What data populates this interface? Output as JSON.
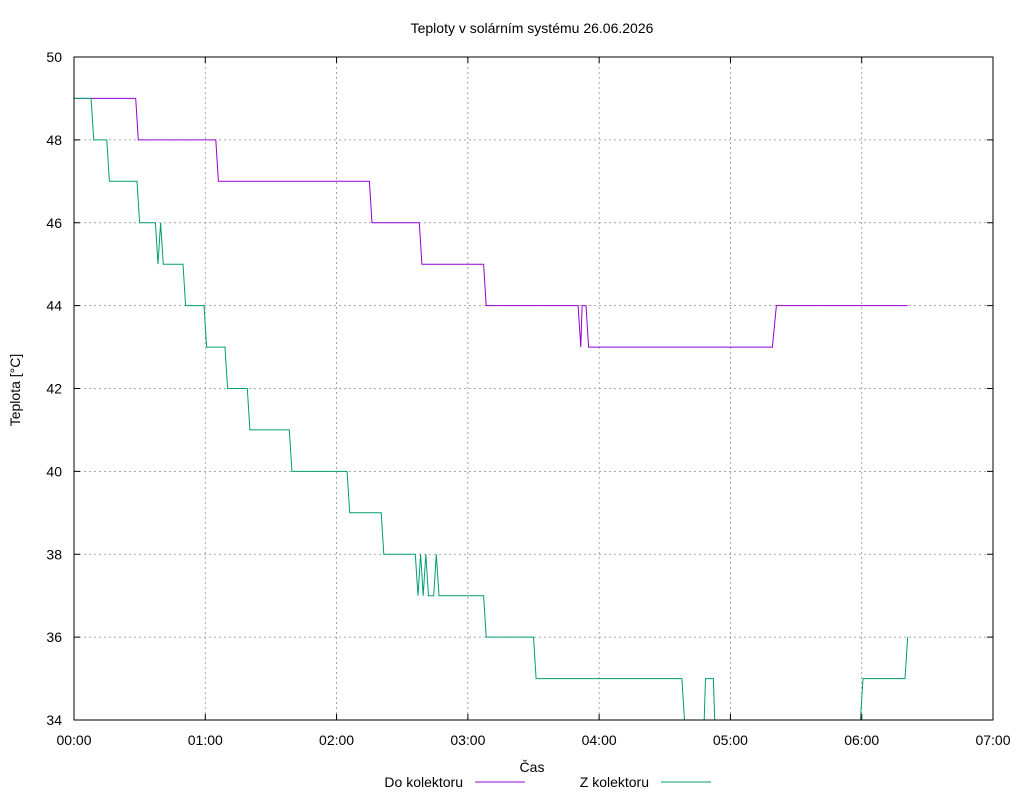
{
  "chart_data": {
    "type": "line",
    "title": "Teploty v solárním systému 26.06.2026",
    "xlabel": "Čas",
    "ylabel": "Teplota [°C]",
    "xlim": [
      0,
      7
    ],
    "ylim": [
      34,
      50
    ],
    "x_ticks": [
      {
        "v": 0,
        "label": "00:00"
      },
      {
        "v": 1,
        "label": "01:00"
      },
      {
        "v": 2,
        "label": "02:00"
      },
      {
        "v": 3,
        "label": "03:00"
      },
      {
        "v": 4,
        "label": "04:00"
      },
      {
        "v": 5,
        "label": "05:00"
      },
      {
        "v": 6,
        "label": "06:00"
      },
      {
        "v": 7,
        "label": "07:00"
      }
    ],
    "y_ticks": [
      {
        "v": 34,
        "label": "34"
      },
      {
        "v": 36,
        "label": "36"
      },
      {
        "v": 38,
        "label": "38"
      },
      {
        "v": 40,
        "label": "40"
      },
      {
        "v": 42,
        "label": "42"
      },
      {
        "v": 44,
        "label": "44"
      },
      {
        "v": 46,
        "label": "46"
      },
      {
        "v": 48,
        "label": "48"
      },
      {
        "v": 50,
        "label": "50"
      }
    ],
    "grid": true,
    "legend_position": "bottom",
    "series": [
      {
        "name": "Do kolektoru",
        "color": "#9400d3",
        "points": [
          [
            0.0,
            49
          ],
          [
            0.47,
            49
          ],
          [
            0.49,
            48
          ],
          [
            1.08,
            48
          ],
          [
            1.1,
            47
          ],
          [
            2.25,
            47
          ],
          [
            2.27,
            46
          ],
          [
            2.63,
            46
          ],
          [
            2.65,
            45
          ],
          [
            3.12,
            45
          ],
          [
            3.14,
            44
          ],
          [
            3.84,
            44
          ],
          [
            3.86,
            43
          ],
          [
            3.87,
            44
          ],
          [
            3.9,
            44
          ],
          [
            3.92,
            43
          ],
          [
            5.32,
            43
          ],
          [
            5.35,
            44
          ],
          [
            6.35,
            44
          ]
        ]
      },
      {
        "name": "Z kolektoru",
        "color": "#009e73",
        "points": [
          [
            0.0,
            49
          ],
          [
            0.13,
            49
          ],
          [
            0.15,
            48
          ],
          [
            0.25,
            48
          ],
          [
            0.27,
            47
          ],
          [
            0.48,
            47
          ],
          [
            0.5,
            46
          ],
          [
            0.62,
            46
          ],
          [
            0.64,
            45
          ],
          [
            0.66,
            46
          ],
          [
            0.68,
            45
          ],
          [
            0.83,
            45
          ],
          [
            0.85,
            44
          ],
          [
            0.99,
            44
          ],
          [
            1.01,
            43
          ],
          [
            1.15,
            43
          ],
          [
            1.17,
            42
          ],
          [
            1.32,
            42
          ],
          [
            1.34,
            41
          ],
          [
            1.64,
            41
          ],
          [
            1.66,
            40
          ],
          [
            2.08,
            40
          ],
          [
            2.1,
            39
          ],
          [
            2.34,
            39
          ],
          [
            2.36,
            38
          ],
          [
            2.6,
            38
          ],
          [
            2.62,
            37
          ],
          [
            2.64,
            38
          ],
          [
            2.66,
            37
          ],
          [
            2.68,
            38
          ],
          [
            2.7,
            37
          ],
          [
            2.74,
            37
          ],
          [
            2.76,
            38
          ],
          [
            2.78,
            37
          ],
          [
            3.12,
            37
          ],
          [
            3.14,
            36
          ],
          [
            3.5,
            36
          ],
          [
            3.52,
            35
          ],
          [
            4.63,
            35
          ],
          [
            4.65,
            34
          ],
          [
            4.8,
            34
          ],
          [
            4.81,
            35
          ],
          [
            4.87,
            35
          ],
          [
            4.88,
            34
          ],
          [
            5.99,
            34
          ],
          [
            6.01,
            35
          ],
          [
            6.33,
            35
          ],
          [
            6.35,
            36
          ]
        ]
      }
    ]
  }
}
